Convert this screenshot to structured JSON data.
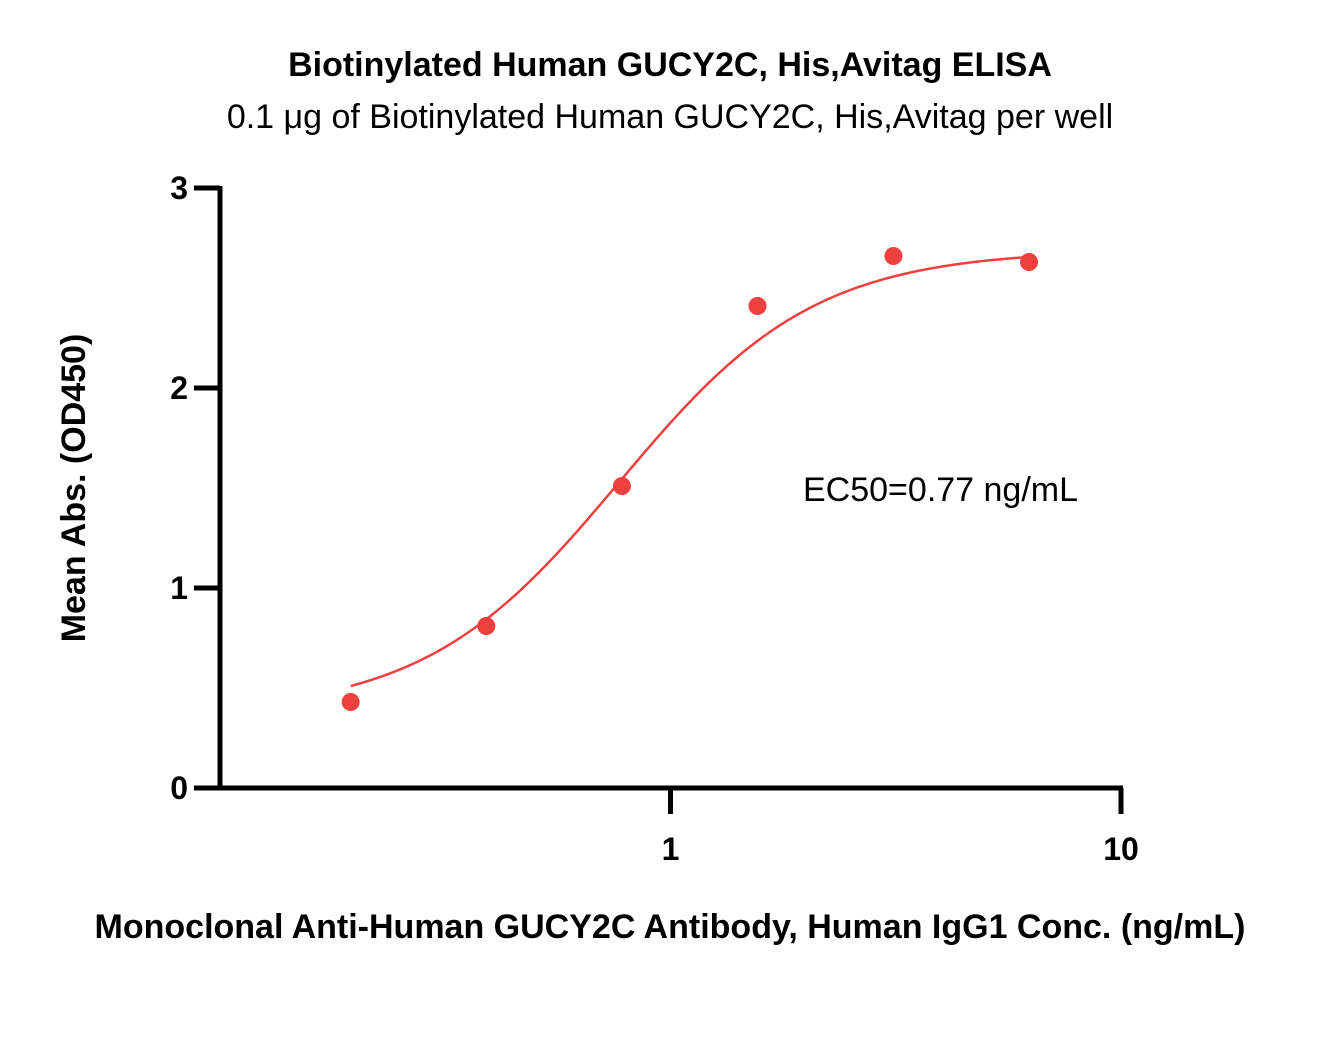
{
  "chart_data": {
    "type": "scatter",
    "title": "Biotinylated Human GUCY2C, His,Avitag ELISA",
    "subtitle": "0.1 μg of Biotinylated Human GUCY2C, His,Avitag per well",
    "xlabel": "Monoclonal Anti-Human GUCY2C Antibody, Human IgG1 Conc. (ng/mL)",
    "ylabel": "Mean Abs. (OD450)",
    "x_scale": "log",
    "xlim": [
      0.1,
      10
    ],
    "ylim": [
      0,
      3
    ],
    "x_ticks": [
      1,
      10
    ],
    "x_tick_labels": [
      "1",
      "10"
    ],
    "y_ticks": [
      0,
      1,
      2,
      3
    ],
    "y_tick_labels": [
      "0",
      "1",
      "2",
      "3"
    ],
    "grid": false,
    "annotation": "EC50=0.77 ng/mL",
    "series": [
      {
        "color": "#ef4040",
        "points": [
          {
            "x": 0.195,
            "y": 0.43
          },
          {
            "x": 0.39,
            "y": 0.81
          },
          {
            "x": 0.78,
            "y": 1.51
          },
          {
            "x": 1.56,
            "y": 2.41
          },
          {
            "x": 3.125,
            "y": 2.66
          },
          {
            "x": 6.25,
            "y": 2.63
          }
        ],
        "fit": {
          "model": "4PL",
          "bottom": 0.37,
          "top": 2.69,
          "ec50": 0.77,
          "hill": 2.0,
          "x_range": [
            0.195,
            6.25
          ]
        }
      }
    ]
  }
}
